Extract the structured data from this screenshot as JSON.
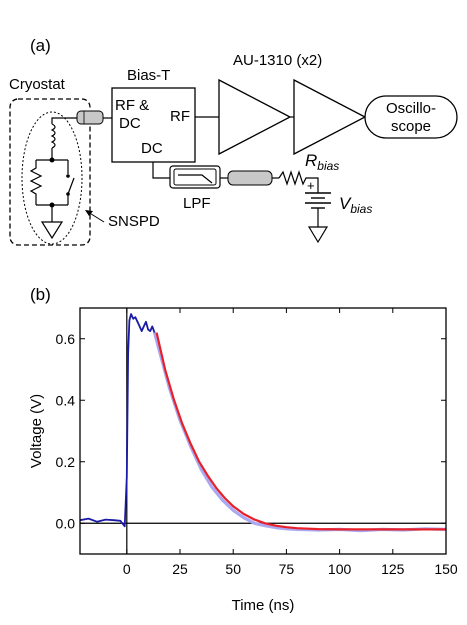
{
  "panel_a": {
    "label": "(a)",
    "cryostat": "Cryostat",
    "bias_t": {
      "title": "Bias-T",
      "port_rfdc_1": "RF &",
      "port_rfdc_2": "DC",
      "port_rf": "RF",
      "port_dc": "DC"
    },
    "amplifier": "AU-1310 (x2)",
    "oscilloscope_1": "Oscillo-",
    "oscilloscope_2": "scope",
    "lpf": "LPF",
    "snspd": "SNSPD",
    "r_bias": {
      "main": "R",
      "sub": "bias"
    },
    "v_bias": {
      "main": "V",
      "sub": "bias"
    },
    "plus_sign": "+"
  },
  "panel_b": {
    "label": "(b)"
  },
  "chart_data": {
    "type": "line",
    "xlabel": "Time (ns)",
    "ylabel": "Voltage (V)",
    "xlim": [
      -22,
      150
    ],
    "ylim": [
      -0.1,
      0.7
    ],
    "xticks": [
      0,
      25,
      50,
      75,
      100,
      125,
      150
    ],
    "yticks": [
      0.0,
      0.2,
      0.4,
      0.6
    ],
    "xtick_labels": [
      "0",
      "25",
      "50",
      "75",
      "100",
      "125",
      "150"
    ],
    "ytick_labels": [
      "0.0",
      "0.2",
      "0.4",
      "0.6"
    ],
    "reference_lines": {
      "horizontal_y": 0.0,
      "vertical_x": 0
    },
    "series": [
      {
        "role": "measured-pulse-leading",
        "color": "#1a1aa6",
        "x": [
          -22,
          -18,
          -14,
          -10,
          -6,
          -3,
          -1,
          0,
          0.6,
          1.2,
          2,
          3,
          4,
          5,
          6,
          7,
          8,
          9,
          10,
          11,
          12,
          13,
          14,
          15
        ],
        "y": [
          0.01,
          0.015,
          0.005,
          0.012,
          0.01,
          0.008,
          -0.01,
          0.15,
          0.55,
          0.66,
          0.68,
          0.665,
          0.67,
          0.655,
          0.64,
          0.625,
          0.64,
          0.655,
          0.63,
          0.625,
          0.64,
          0.62,
          0.6,
          0.6
        ]
      },
      {
        "role": "measured-pulse-decay",
        "color": "#a9a8f0",
        "x": [
          13,
          20,
          25,
          30,
          35,
          40,
          45,
          50,
          55,
          60,
          65,
          70,
          75,
          80,
          90,
          100,
          110,
          120,
          130,
          140,
          150
        ],
        "y": [
          0.62,
          0.44,
          0.335,
          0.25,
          0.175,
          0.118,
          0.075,
          0.042,
          0.018,
          0.0,
          -0.008,
          -0.014,
          -0.018,
          -0.02,
          -0.022,
          -0.02,
          -0.024,
          -0.02,
          -0.022,
          -0.018,
          -0.02
        ]
      },
      {
        "role": "exponential-fit",
        "color": "#e8202a",
        "x": [
          14,
          18,
          22,
          26,
          30,
          34,
          38,
          42,
          46,
          50,
          55,
          60,
          65,
          70,
          75,
          80,
          90,
          100,
          110,
          120,
          130,
          140,
          150
        ],
        "y": [
          0.62,
          0.5,
          0.405,
          0.325,
          0.258,
          0.2,
          0.155,
          0.115,
          0.082,
          0.055,
          0.03,
          0.012,
          0.0,
          -0.008,
          -0.013,
          -0.016,
          -0.019,
          -0.02,
          -0.02,
          -0.02,
          -0.02,
          -0.02,
          -0.02
        ]
      }
    ]
  }
}
